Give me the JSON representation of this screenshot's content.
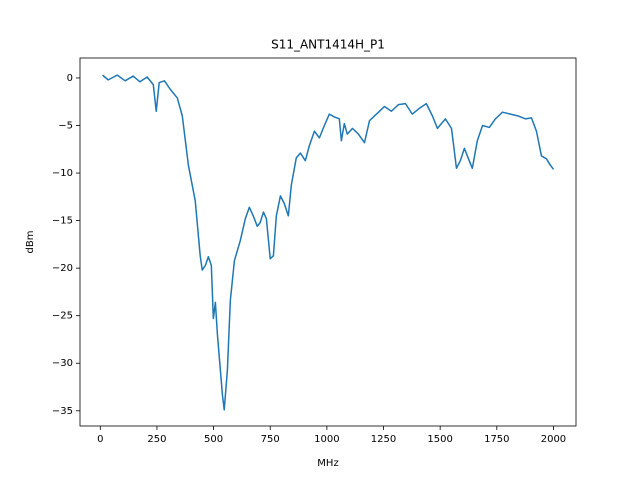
{
  "chart_data": {
    "type": "line",
    "title": "S11_ANT1414H_P1",
    "x_label": "MHz",
    "y_label": "dBm",
    "x": [
      10,
      35,
      75,
      110,
      145,
      175,
      207,
      234,
      247,
      260,
      283,
      309,
      340,
      362,
      389,
      419,
      441,
      450,
      464,
      477,
      490,
      499,
      508,
      517,
      530,
      539,
      547,
      561,
      574,
      592,
      618,
      640,
      658,
      675,
      693,
      706,
      720,
      733,
      750,
      764,
      777,
      795,
      812,
      830,
      843,
      865,
      883,
      905,
      923,
      945,
      967,
      989,
      1011,
      1033,
      1055,
      1064,
      1077,
      1090,
      1113,
      1139,
      1166,
      1188,
      1219,
      1254,
      1285,
      1316,
      1347,
      1377,
      1408,
      1439,
      1466,
      1488,
      1523,
      1550,
      1572,
      1589,
      1607,
      1625,
      1642,
      1664,
      1687,
      1717,
      1744,
      1775,
      1810,
      1845,
      1876,
      1903,
      1925,
      1947,
      1969,
      1987,
      2000
    ],
    "series": [
      {
        "name": "S11",
        "color": "#1f77b4",
        "values": [
          0.3,
          -0.2,
          0.3,
          -0.3,
          0.2,
          -0.4,
          0.1,
          -0.7,
          -3.5,
          -0.5,
          -0.3,
          -1.2,
          -2.1,
          -4,
          -9.2,
          -12.9,
          -18.7,
          -20.2,
          -19.7,
          -18.8,
          -19.7,
          -25.3,
          -23.6,
          -27,
          -30.7,
          -33.3,
          -34.9,
          -30.7,
          -23.4,
          -19.2,
          -17.1,
          -14.8,
          -13.6,
          -14.5,
          -15.6,
          -15.2,
          -14.1,
          -14.8,
          -19,
          -18.7,
          -14.5,
          -12.4,
          -13.2,
          -14.5,
          -11.3,
          -8.4,
          -7.9,
          -8.7,
          -7.1,
          -5.6,
          -6.3,
          -5,
          -3.8,
          -4.1,
          -4.3,
          -6.6,
          -4.8,
          -5.9,
          -5.3,
          -5.9,
          -6.8,
          -4.5,
          -3.8,
          -3,
          -3.5,
          -2.8,
          -2.7,
          -3.8,
          -3.2,
          -2.7,
          -4,
          -5.3,
          -4.3,
          -5.3,
          -9.5,
          -8.7,
          -7.4,
          -8.5,
          -9.5,
          -6.6,
          -5,
          -5.2,
          -4.3,
          -3.6,
          -3.8,
          -4,
          -4.3,
          -4.2,
          -5.6,
          -8.2,
          -8.5,
          -9.2,
          -9.6
        ]
      }
    ],
    "xlim": [
      -89.5,
      2099.5
    ],
    "ylim": [
      -36.6,
      2.1
    ],
    "xticks": [
      0,
      250,
      500,
      750,
      1000,
      1250,
      1500,
      1750,
      2000
    ],
    "yticks": [
      {
        "value": -35,
        "label": "−35"
      },
      {
        "value": -30,
        "label": "−30"
      },
      {
        "value": -25,
        "label": "−25"
      },
      {
        "value": -20,
        "label": "−20"
      },
      {
        "value": -15,
        "label": "−15"
      },
      {
        "value": -10,
        "label": "−10"
      },
      {
        "value": -5,
        "label": "−5"
      },
      0
    ],
    "grid": false
  }
}
